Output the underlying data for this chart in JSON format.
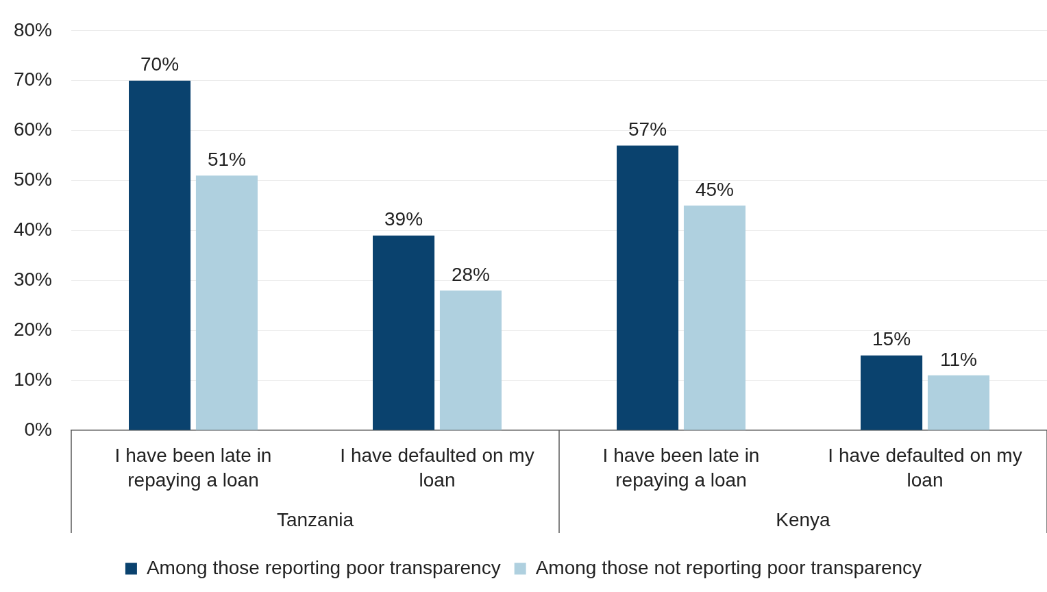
{
  "chart_data": {
    "type": "bar",
    "categories": [
      "I have been late in repaying a loan",
      "I have defaulted on my loan",
      "I have been late in repaying a loan",
      "I have defaulted on my loan"
    ],
    "series": [
      {
        "name": "Among those reporting poor transparency",
        "color": "#0a426e",
        "values": [
          70,
          39,
          57,
          15
        ],
        "value_labels": [
          "70%",
          "39%",
          "57%",
          "15%"
        ]
      },
      {
        "name": "Among those not reporting poor transparency",
        "color": "#afd0df",
        "values": [
          51,
          28,
          45,
          11
        ],
        "value_labels": [
          "51%",
          "28%",
          "45%",
          "11%"
        ]
      }
    ],
    "annotations": [
      "Tanzania",
      "Kenya"
    ],
    "ylim": [
      0,
      80
    ],
    "yticks": [
      {
        "value": 0,
        "label": "0%"
      },
      {
        "value": 10,
        "label": "10%"
      },
      {
        "value": 20,
        "label": "20%"
      },
      {
        "value": 30,
        "label": "30%"
      },
      {
        "value": 40,
        "label": "40%"
      },
      {
        "value": 50,
        "label": "50%"
      },
      {
        "value": 60,
        "label": "60%"
      },
      {
        "value": 70,
        "label": "70%"
      },
      {
        "value": 80,
        "label": "80%"
      }
    ],
    "grid": "y",
    "legend": "bottom"
  }
}
